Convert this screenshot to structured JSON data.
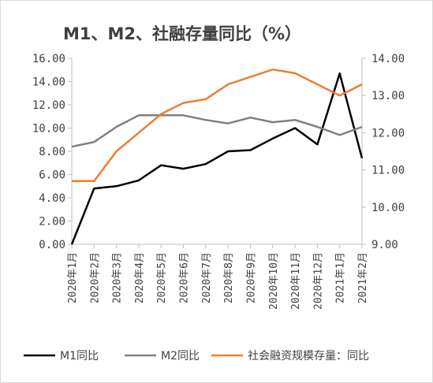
{
  "chart_data": {
    "type": "line",
    "title": "M1、M2、社融存量同比（%）",
    "categories": [
      "2020年1月",
      "2020年2月",
      "2020年3月",
      "2020年4月",
      "2020年5月",
      "2020年6月",
      "2020年7月",
      "2020年8月",
      "2020年9月",
      "2020年10月",
      "2020年11月",
      "2020年12月",
      "2021年1月",
      "2021年2月"
    ],
    "y_left": {
      "min": 0,
      "max": 16,
      "ticks": [
        "0.00",
        "2.00",
        "4.00",
        "6.00",
        "8.00",
        "10.00",
        "12.00",
        "14.00",
        "16.00"
      ]
    },
    "y_right": {
      "min": 9,
      "max": 14,
      "ticks": [
        "9.00",
        "10.00",
        "11.00",
        "12.00",
        "13.00",
        "14.00"
      ]
    },
    "series": [
      {
        "name": "M1同比",
        "axis": "left",
        "color": "#000000",
        "values": [
          0.0,
          4.8,
          5.0,
          5.5,
          6.8,
          6.5,
          6.9,
          8.0,
          8.1,
          9.1,
          10.0,
          8.6,
          14.7,
          7.4
        ]
      },
      {
        "name": "M2同比",
        "axis": "left",
        "color": "#808080",
        "values": [
          8.4,
          8.8,
          10.1,
          11.1,
          11.1,
          11.1,
          10.7,
          10.4,
          10.9,
          10.5,
          10.7,
          10.1,
          9.4,
          10.1
        ]
      },
      {
        "name": "社会融资规模存量：同比",
        "axis": "right",
        "color": "#ED7D31",
        "values": [
          10.7,
          10.7,
          11.5,
          12.0,
          12.5,
          12.8,
          12.9,
          13.3,
          13.5,
          13.7,
          13.6,
          13.3,
          13.0,
          13.3
        ]
      }
    ],
    "grid": false,
    "legend_position": "bottom"
  }
}
